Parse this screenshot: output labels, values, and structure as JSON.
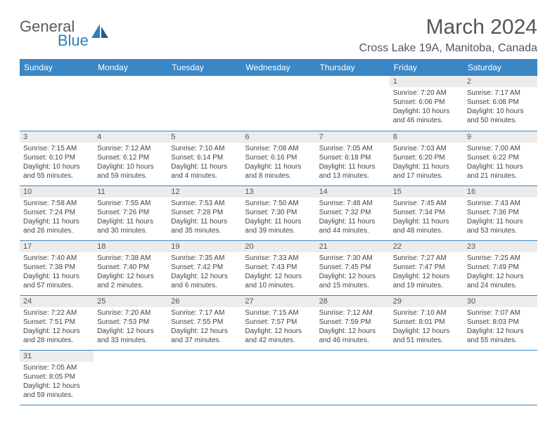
{
  "brand": {
    "name1": "General",
    "name2": "Blue"
  },
  "title": "March 2024",
  "location": "Cross Lake 19A, Manitoba, Canada",
  "colors": {
    "header_bg": "#3a87c6",
    "header_text": "#ffffff",
    "daynum_bg": "#ececec",
    "border": "#3a87c6",
    "logo_gray": "#5a5a5a",
    "logo_blue": "#2f7fb8"
  },
  "weekdays": [
    "Sunday",
    "Monday",
    "Tuesday",
    "Wednesday",
    "Thursday",
    "Friday",
    "Saturday"
  ],
  "first_weekday_index": 5,
  "days": [
    {
      "n": 1,
      "sunrise": "7:20 AM",
      "sunset": "6:06 PM",
      "daylight": "10 hours and 46 minutes."
    },
    {
      "n": 2,
      "sunrise": "7:17 AM",
      "sunset": "6:08 PM",
      "daylight": "10 hours and 50 minutes."
    },
    {
      "n": 3,
      "sunrise": "7:15 AM",
      "sunset": "6:10 PM",
      "daylight": "10 hours and 55 minutes."
    },
    {
      "n": 4,
      "sunrise": "7:12 AM",
      "sunset": "6:12 PM",
      "daylight": "10 hours and 59 minutes."
    },
    {
      "n": 5,
      "sunrise": "7:10 AM",
      "sunset": "6:14 PM",
      "daylight": "11 hours and 4 minutes."
    },
    {
      "n": 6,
      "sunrise": "7:08 AM",
      "sunset": "6:16 PM",
      "daylight": "11 hours and 8 minutes."
    },
    {
      "n": 7,
      "sunrise": "7:05 AM",
      "sunset": "6:18 PM",
      "daylight": "11 hours and 13 minutes."
    },
    {
      "n": 8,
      "sunrise": "7:03 AM",
      "sunset": "6:20 PM",
      "daylight": "11 hours and 17 minutes."
    },
    {
      "n": 9,
      "sunrise": "7:00 AM",
      "sunset": "6:22 PM",
      "daylight": "11 hours and 21 minutes."
    },
    {
      "n": 10,
      "sunrise": "7:58 AM",
      "sunset": "7:24 PM",
      "daylight": "11 hours and 26 minutes."
    },
    {
      "n": 11,
      "sunrise": "7:55 AM",
      "sunset": "7:26 PM",
      "daylight": "11 hours and 30 minutes."
    },
    {
      "n": 12,
      "sunrise": "7:53 AM",
      "sunset": "7:28 PM",
      "daylight": "11 hours and 35 minutes."
    },
    {
      "n": 13,
      "sunrise": "7:50 AM",
      "sunset": "7:30 PM",
      "daylight": "11 hours and 39 minutes."
    },
    {
      "n": 14,
      "sunrise": "7:48 AM",
      "sunset": "7:32 PM",
      "daylight": "11 hours and 44 minutes."
    },
    {
      "n": 15,
      "sunrise": "7:45 AM",
      "sunset": "7:34 PM",
      "daylight": "11 hours and 48 minutes."
    },
    {
      "n": 16,
      "sunrise": "7:43 AM",
      "sunset": "7:36 PM",
      "daylight": "11 hours and 53 minutes."
    },
    {
      "n": 17,
      "sunrise": "7:40 AM",
      "sunset": "7:38 PM",
      "daylight": "11 hours and 57 minutes."
    },
    {
      "n": 18,
      "sunrise": "7:38 AM",
      "sunset": "7:40 PM",
      "daylight": "12 hours and 2 minutes."
    },
    {
      "n": 19,
      "sunrise": "7:35 AM",
      "sunset": "7:42 PM",
      "daylight": "12 hours and 6 minutes."
    },
    {
      "n": 20,
      "sunrise": "7:33 AM",
      "sunset": "7:43 PM",
      "daylight": "12 hours and 10 minutes."
    },
    {
      "n": 21,
      "sunrise": "7:30 AM",
      "sunset": "7:45 PM",
      "daylight": "12 hours and 15 minutes."
    },
    {
      "n": 22,
      "sunrise": "7:27 AM",
      "sunset": "7:47 PM",
      "daylight": "12 hours and 19 minutes."
    },
    {
      "n": 23,
      "sunrise": "7:25 AM",
      "sunset": "7:49 PM",
      "daylight": "12 hours and 24 minutes."
    },
    {
      "n": 24,
      "sunrise": "7:22 AM",
      "sunset": "7:51 PM",
      "daylight": "12 hours and 28 minutes."
    },
    {
      "n": 25,
      "sunrise": "7:20 AM",
      "sunset": "7:53 PM",
      "daylight": "12 hours and 33 minutes."
    },
    {
      "n": 26,
      "sunrise": "7:17 AM",
      "sunset": "7:55 PM",
      "daylight": "12 hours and 37 minutes."
    },
    {
      "n": 27,
      "sunrise": "7:15 AM",
      "sunset": "7:57 PM",
      "daylight": "12 hours and 42 minutes."
    },
    {
      "n": 28,
      "sunrise": "7:12 AM",
      "sunset": "7:59 PM",
      "daylight": "12 hours and 46 minutes."
    },
    {
      "n": 29,
      "sunrise": "7:10 AM",
      "sunset": "8:01 PM",
      "daylight": "12 hours and 51 minutes."
    },
    {
      "n": 30,
      "sunrise": "7:07 AM",
      "sunset": "8:03 PM",
      "daylight": "12 hours and 55 minutes."
    },
    {
      "n": 31,
      "sunrise": "7:05 AM",
      "sunset": "8:05 PM",
      "daylight": "12 hours and 59 minutes."
    }
  ],
  "labels": {
    "sunrise": "Sunrise:",
    "sunset": "Sunset:",
    "daylight": "Daylight:"
  }
}
